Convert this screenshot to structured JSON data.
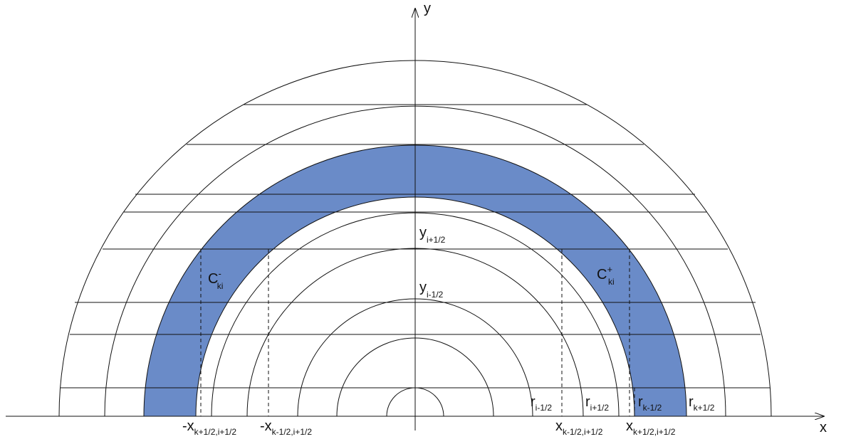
{
  "axes": {
    "x_label": "x",
    "y_label": "y"
  },
  "labels": {
    "c_minus": {
      "base": "C",
      "sub": "ki",
      "sup": "-"
    },
    "c_plus": {
      "base": "C",
      "sub": "ki",
      "sup": "+"
    },
    "y_upper": {
      "base": "y",
      "sub": "i+1/2"
    },
    "y_lower": {
      "base": "y",
      "sub": "i-1/2"
    },
    "r_i_minus": {
      "base": "r",
      "sub": "i-1/2"
    },
    "r_i_plus": {
      "base": "r",
      "sub": "i+1/2"
    },
    "r_k_minus": {
      "base": "r",
      "sub": "k-1/2"
    },
    "r_k_plus": {
      "base": "r",
      "sub": "k+1/2"
    },
    "neg_x_k_plus": {
      "base": "-x",
      "sub": "k+1/2,i+1/2"
    },
    "neg_x_k_minus": {
      "base": "-x",
      "sub": "k-1/2,i+1/2"
    },
    "x_k_minus": {
      "base": "x",
      "sub": "k-1/2,i+1/2"
    },
    "x_k_plus": {
      "base": "x",
      "sub": "k+1/2,i+1/2"
    }
  },
  "colors": {
    "ring_fill": "#6a8bc8",
    "stroke": "#111111",
    "background": "#ffffff"
  }
}
